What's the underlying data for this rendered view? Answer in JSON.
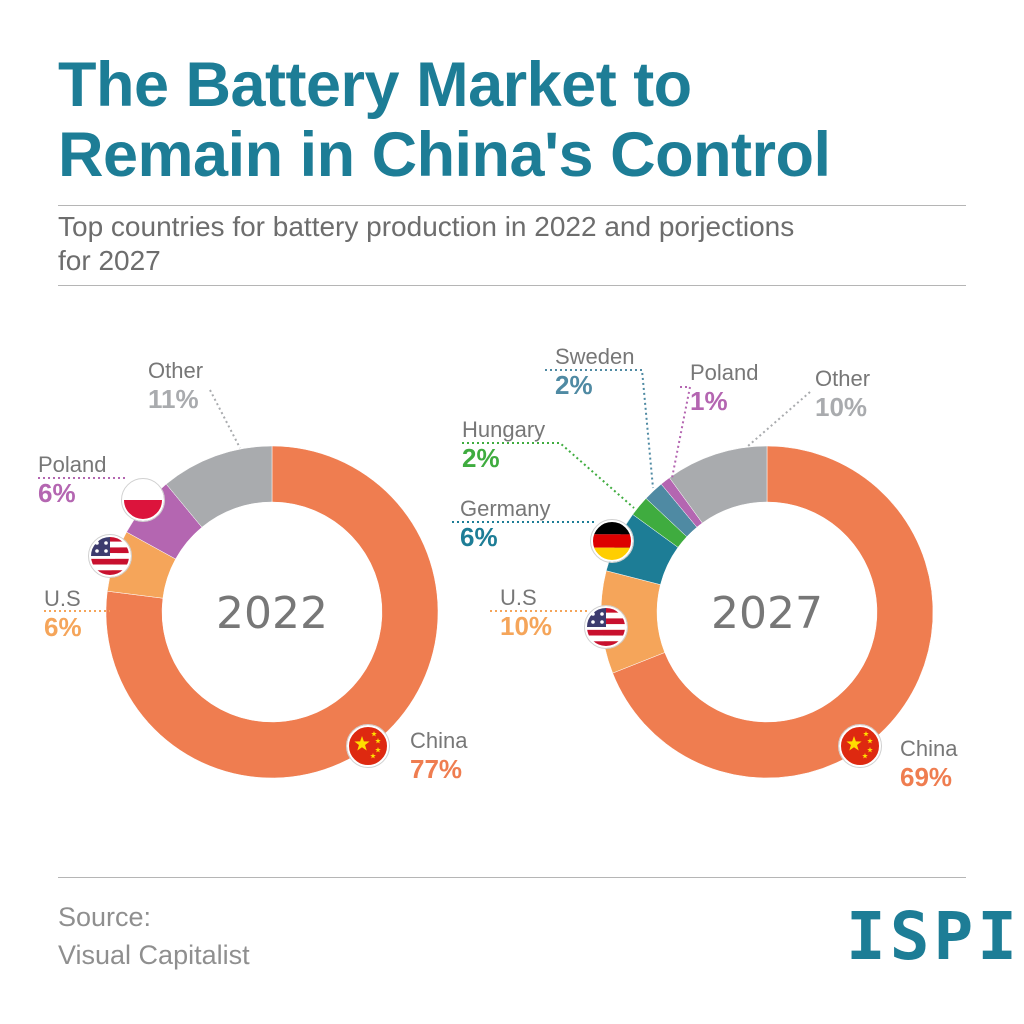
{
  "header": {
    "title_line1": "The Battery Market to",
    "title_line2": "Remain in China's Control",
    "subtitle_line1": "Top countries for battery production in 2022 and porjections",
    "subtitle_line2": "for 2027"
  },
  "footer": {
    "source_label": "Source:",
    "source_name": "Visual Capitalist",
    "logo_text": "ISPI"
  },
  "colors": {
    "china": "#ef7d50",
    "us": "#f5a55a",
    "poland": "#b466b1",
    "other": "#a9abae",
    "germany": "#1d7d96",
    "hungary": "#3fac3f",
    "sweden": "#4f8aa3",
    "title": "#1d7d96"
  },
  "chart_data": [
    {
      "type": "pie",
      "center_label": "2022",
      "slices": [
        {
          "name": "China",
          "label": "China",
          "value": 77,
          "value_label": "77%",
          "color": "#ef7d50",
          "flag": "china-flag-icon"
        },
        {
          "name": "U.S",
          "label": "U.S",
          "value": 6,
          "value_label": "6%",
          "color": "#f5a55a",
          "flag": "us-flag-icon"
        },
        {
          "name": "Poland",
          "label": "Poland",
          "value": 6,
          "value_label": "6%",
          "color": "#b466b1",
          "flag": "poland-flag-icon"
        },
        {
          "name": "Other",
          "label": "Other",
          "value": 11,
          "value_label": "11%",
          "color": "#a9abae",
          "flag": ""
        }
      ]
    },
    {
      "type": "pie",
      "center_label": "2027",
      "slices": [
        {
          "name": "China",
          "label": "China",
          "value": 69,
          "value_label": "69%",
          "color": "#ef7d50",
          "flag": "china-flag-icon"
        },
        {
          "name": "U.S",
          "label": "U.S",
          "value": 10,
          "value_label": "10%",
          "color": "#f5a55a",
          "flag": "us-flag-icon"
        },
        {
          "name": "Germany",
          "label": "Germany",
          "value": 6,
          "value_label": "6%",
          "color": "#1d7d96",
          "flag": "germany-flag-icon"
        },
        {
          "name": "Hungary",
          "label": "Hungary",
          "value": 2,
          "value_label": "2%",
          "color": "#3fac3f",
          "flag": ""
        },
        {
          "name": "Sweden",
          "label": "Sweden",
          "value": 2,
          "value_label": "2%",
          "color": "#4f8aa3",
          "flag": ""
        },
        {
          "name": "Poland",
          "label": "Poland",
          "value": 1,
          "value_label": "1%",
          "color": "#b466b1",
          "flag": ""
        },
        {
          "name": "Other",
          "label": "Other",
          "value": 10,
          "value_label": "10%",
          "color": "#a9abae",
          "flag": ""
        }
      ]
    }
  ]
}
